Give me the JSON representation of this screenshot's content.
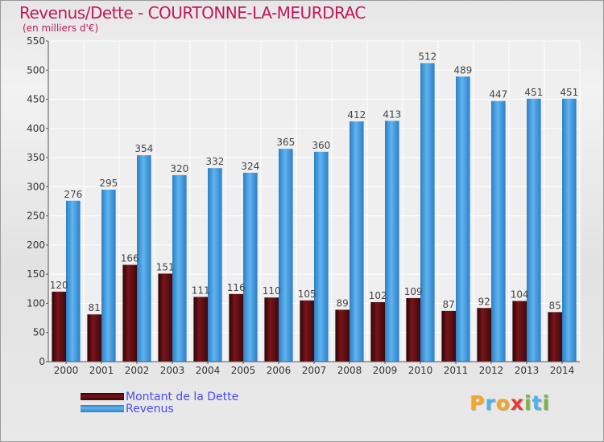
{
  "chart_data": {
    "type": "bar",
    "title": "Revenus/Dette - COURTONNE-LA-MEURDRAC",
    "subtitle": "(en milliers d'€)",
    "categories": [
      "2000",
      "2001",
      "2002",
      "2003",
      "2004",
      "2005",
      "2006",
      "2007",
      "2008",
      "2009",
      "2010",
      "2011",
      "2012",
      "2013",
      "2014"
    ],
    "series": [
      {
        "name": "Montant de la Dette",
        "color": "#7a1419",
        "values": [
          120,
          81,
          166,
          151,
          111,
          116,
          110,
          105,
          89,
          102,
          109,
          87,
          92,
          104,
          85
        ]
      },
      {
        "name": "Revenus",
        "color": "#4aa3e8",
        "values": [
          276,
          295,
          354,
          320,
          332,
          324,
          365,
          360,
          412,
          413,
          512,
          489,
          447,
          451,
          451
        ]
      }
    ],
    "ylim": [
      0,
      550
    ],
    "yticks": [
      0,
      50,
      100,
      150,
      200,
      250,
      300,
      350,
      400,
      450,
      500,
      550
    ],
    "xlabel": "",
    "ylabel": "",
    "grid": true,
    "legend": "bottom-left"
  },
  "logo": {
    "text": "Proxiti",
    "letters": [
      {
        "ch": "P",
        "color": "#f5a623"
      },
      {
        "ch": "r",
        "color": "#4fb3e8"
      },
      {
        "ch": "o",
        "color": "#f5a623"
      },
      {
        "ch": "x",
        "color": "#e53935"
      },
      {
        "ch": "i",
        "color": "#7cb342"
      },
      {
        "ch": "t",
        "color": "#4fb3e8"
      },
      {
        "ch": "i",
        "color": "#7cb342"
      }
    ]
  }
}
